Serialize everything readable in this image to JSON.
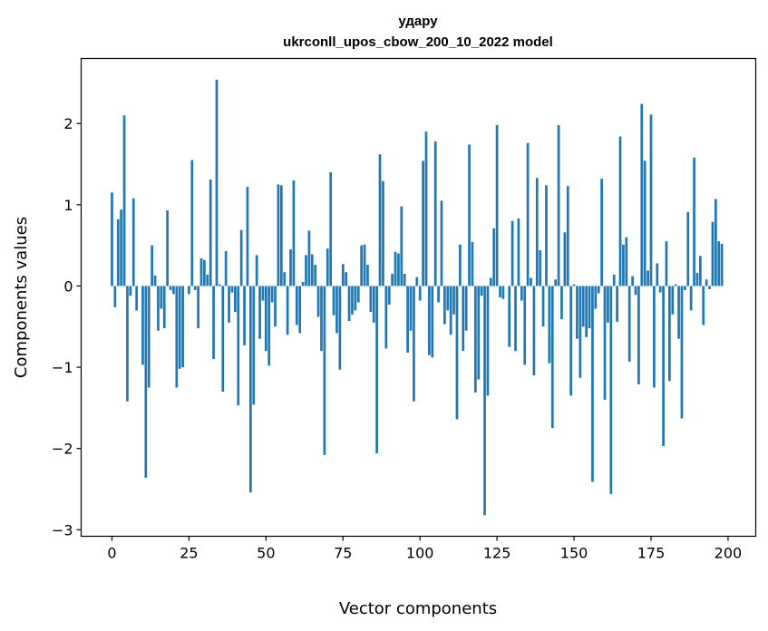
{
  "chart_data": {
    "type": "bar",
    "title": "удару",
    "subtitle": "ukrconll_upos_cbow_200_10_2022 model",
    "xlabel": "Vector components",
    "ylabel": "Components values",
    "xlim": [
      -10,
      209
    ],
    "ylim": [
      -3.08,
      2.8
    ],
    "x_ticks": [
      0,
      25,
      50,
      75,
      100,
      125,
      150,
      175,
      200
    ],
    "x_tick_labels": [
      "0",
      "25",
      "50",
      "75",
      "100",
      "125",
      "150",
      "175",
      "200"
    ],
    "y_ticks": [
      -3,
      -2,
      -1,
      0,
      1,
      2
    ],
    "y_tick_labels": [
      "−3",
      "−2",
      "−1",
      "0",
      "1",
      "2"
    ],
    "grid": false,
    "bar_color": "#1f77b4",
    "values": [
      1.15,
      -0.26,
      0.82,
      0.94,
      2.1,
      -1.42,
      -0.12,
      1.08,
      -0.3,
      0.0,
      -0.97,
      -2.36,
      -1.25,
      0.5,
      0.13,
      -0.55,
      -0.28,
      -0.52,
      0.93,
      -0.05,
      -0.1,
      -1.25,
      -1.02,
      -1.0,
      0.0,
      -0.1,
      1.55,
      -0.05,
      -0.52,
      0.34,
      0.32,
      0.14,
      1.31,
      -0.9,
      2.54,
      0.02,
      -1.3,
      0.43,
      -0.45,
      -0.08,
      -0.32,
      -1.47,
      0.69,
      -0.73,
      1.22,
      -2.54,
      -1.46,
      0.38,
      -0.65,
      -0.18,
      -0.8,
      -0.98,
      -0.2,
      -0.5,
      1.25,
      1.24,
      0.17,
      -0.6,
      0.45,
      1.3,
      -0.48,
      -0.58,
      0.05,
      0.38,
      0.68,
      0.39,
      0.26,
      -0.38,
      -0.8,
      -2.08,
      0.46,
      1.4,
      -0.36,
      -0.58,
      -1.03,
      0.27,
      0.17,
      -0.43,
      -0.35,
      -0.3,
      -0.2,
      0.5,
      0.51,
      0.26,
      -0.32,
      -0.45,
      -2.06,
      1.62,
      1.29,
      -0.77,
      -0.23,
      0.15,
      0.42,
      0.4,
      0.98,
      0.15,
      -0.82,
      -0.55,
      -1.42,
      0.11,
      -0.18,
      1.54,
      1.9,
      -0.85,
      -0.88,
      1.78,
      -0.2,
      1.05,
      -0.47,
      -0.3,
      -0.6,
      -0.35,
      -1.64,
      0.51,
      -0.8,
      -0.55,
      1.74,
      0.54,
      -1.31,
      -1.15,
      -0.12,
      -2.82,
      -1.35,
      0.1,
      0.71,
      1.98,
      -0.14,
      -0.16,
      0.0,
      -0.75,
      0.8,
      -0.8,
      0.83,
      -0.18,
      -0.97,
      1.76,
      0.1,
      -1.1,
      1.33,
      0.44,
      -0.5,
      1.24,
      -0.95,
      -1.75,
      0.08,
      1.98,
      -0.41,
      0.66,
      1.23,
      -1.35,
      0.02,
      -0.65,
      -1.13,
      -0.5,
      -0.63,
      -0.52,
      -2.41,
      -0.28,
      -0.09,
      1.32,
      -1.4,
      -0.45,
      -2.56,
      0.14,
      -0.44,
      1.84,
      0.51,
      0.6,
      -0.93,
      0.12,
      -0.11,
      -1.21,
      2.24,
      1.54,
      0.19,
      2.11,
      -1.25,
      0.28,
      -0.08,
      -1.97,
      0.55,
      -1.17,
      -0.35,
      0.02,
      -0.65,
      -1.63,
      -0.05,
      0.91,
      -0.3,
      1.58,
      0.16,
      0.37,
      -0.48,
      0.08,
      -0.04,
      0.79,
      1.07,
      0.55,
      0.52
    ]
  }
}
